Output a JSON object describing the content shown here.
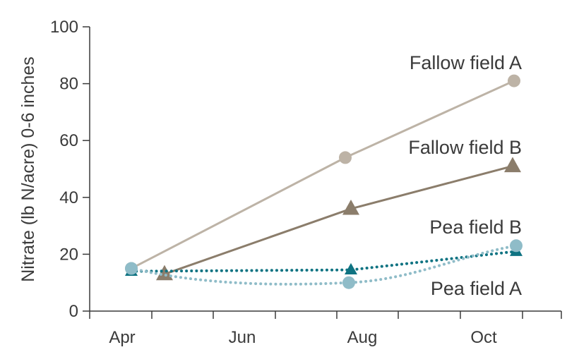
{
  "chart_data": {
    "type": "line",
    "title": "",
    "xlabel": "",
    "ylabel": "Nitrate (lb N/acre) 0-6 inches",
    "ylim": [
      0,
      100
    ],
    "yticks": [
      0,
      20,
      40,
      60,
      80,
      100
    ],
    "x_ticks": [
      "Apr",
      "Jun",
      "Aug",
      "Oct"
    ],
    "grid": false,
    "legend": "inline-labels",
    "series": [
      {
        "name": "Fallow field A",
        "marker": "circle",
        "line_style": "solid",
        "color": "#bdb3a6",
        "points": [
          {
            "x": "Apr",
            "y": 15
          },
          {
            "x": "Aug",
            "y": 54
          },
          {
            "x": "Oct",
            "y": 81
          }
        ]
      },
      {
        "name": "Fallow field B",
        "marker": "triangle",
        "line_style": "solid",
        "color": "#8b7d6b",
        "points": [
          {
            "x": "Apr",
            "y": 13
          },
          {
            "x": "Aug",
            "y": 36
          },
          {
            "x": "Oct",
            "y": 51
          }
        ]
      },
      {
        "name": "Pea field B",
        "marker": "triangle",
        "line_style": "dotted",
        "color": "#0f7382",
        "points": [
          {
            "x": "Apr",
            "y": 14
          },
          {
            "x": "Aug",
            "y": 14.5
          },
          {
            "x": "Oct",
            "y": 21
          }
        ]
      },
      {
        "name": "Pea field A",
        "marker": "circle",
        "line_style": "dotted",
        "color": "#8fbcc8",
        "points": [
          {
            "x": "Apr",
            "y": 15
          },
          {
            "x": "Aug",
            "y": 10
          },
          {
            "x": "Oct",
            "y": 23
          }
        ]
      }
    ]
  }
}
